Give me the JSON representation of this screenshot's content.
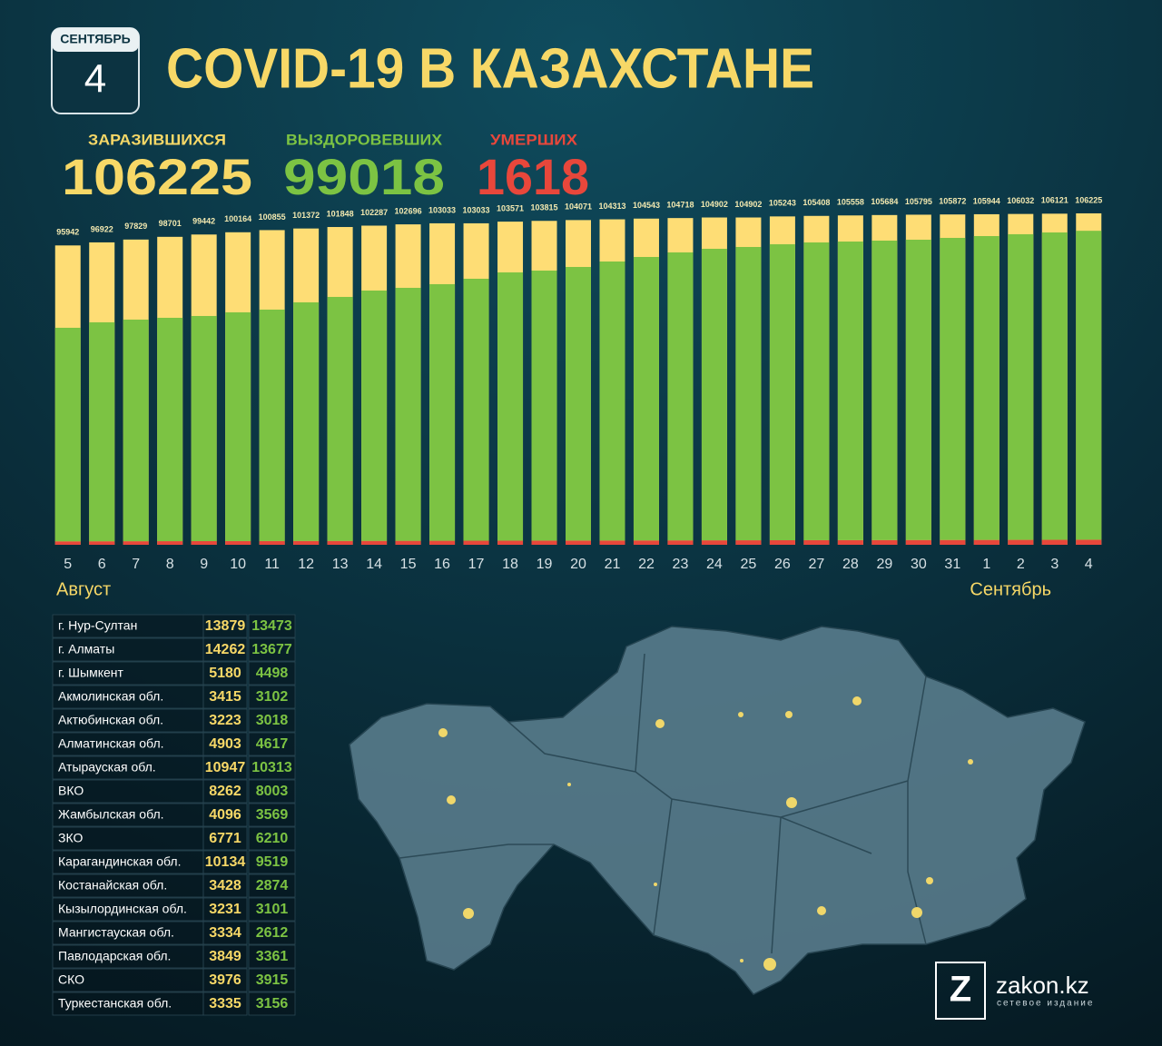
{
  "header": {
    "month": "СЕНТЯБРЬ",
    "day": "4",
    "title": "COVID-19 В КАЗАХСТАНЕ",
    "stats": [
      {
        "label": "ЗАРАЗИВШИХСЯ",
        "value": 106225
      },
      {
        "label": "ВЫЗДОРОВЕВШИХ",
        "value": 99018
      },
      {
        "label": "УМЕРШИХ",
        "value": 1618
      }
    ]
  },
  "chart_data": {
    "type": "bar",
    "categories": [
      "5",
      "6",
      "7",
      "8",
      "9",
      "10",
      "11",
      "12",
      "13",
      "14",
      "15",
      "16",
      "17",
      "18",
      "19",
      "20",
      "21",
      "22",
      "23",
      "24",
      "25",
      "26",
      "27",
      "28",
      "29",
      "30",
      "31",
      "1",
      "2",
      "3",
      "4"
    ],
    "totals": [
      95942,
      96922,
      97829,
      98701,
      99442,
      100164,
      100855,
      101372,
      101848,
      102287,
      102696,
      103033,
      103033,
      103571,
      103815,
      104071,
      104313,
      104543,
      104718,
      104902,
      104902,
      105243,
      105408,
      105558,
      105684,
      105795,
      105872,
      105944,
      106032,
      106121,
      106225
    ],
    "totals_color": "#fedd75",
    "series": [
      {
        "color": "#e8473b",
        "values": [
          1100,
          1117,
          1134,
          1151,
          1168,
          1185,
          1202,
          1219,
          1236,
          1253,
          1270,
          1287,
          1304,
          1321,
          1338,
          1355,
          1372,
          1389,
          1406,
          1423,
          1440,
          1457,
          1474,
          1491,
          1508,
          1525,
          1542,
          1559,
          1576,
          1593,
          1618
        ]
      },
      {
        "color": "#7cc343",
        "values": [
          68450,
          70180,
          71030,
          71600,
          72160,
          73310,
          74170,
          76480,
          78210,
          80230,
          81080,
          82230,
          83960,
          85980,
          86540,
          87690,
          89420,
          90860,
          92300,
          93440,
          94010,
          94860,
          95430,
          95700,
          95980,
          96250,
          96820,
          97380,
          97950,
          98510,
          99018
        ]
      }
    ],
    "ylim": [
      0,
      110000
    ],
    "annotations": [
      "Август",
      "Сентябрь"
    ]
  },
  "table": {
    "rows": [
      [
        "г. Нур-Султан",
        13879,
        13473
      ],
      [
        "г. Алматы",
        14262,
        13677
      ],
      [
        "г. Шымкент",
        5180,
        4498
      ],
      [
        "Акмолинская обл.",
        3415,
        3102
      ],
      [
        "Актюбинская обл.",
        3223,
        3018
      ],
      [
        "Алматинская обл.",
        4903,
        4617
      ],
      [
        "Атырауская обл.",
        10947,
        10313
      ],
      [
        "ВКО",
        8262,
        8003
      ],
      [
        "Жамбылская обл.",
        4096,
        3569
      ],
      [
        "ЗКО",
        6771,
        6210
      ],
      [
        "Карагандинская обл.",
        10134,
        9519
      ],
      [
        "Костанайская обл.",
        3428,
        2874
      ],
      [
        "Кызылординская обл.",
        3231,
        3101
      ],
      [
        "Мангистауская обл.",
        3334,
        2612
      ],
      [
        "Павлодарская обл.",
        3849,
        3361
      ],
      [
        "СКО",
        3976,
        3915
      ],
      [
        "Туркестанская обл.",
        3335,
        3156
      ]
    ]
  },
  "footer": {
    "logo": "Z",
    "brand": "zakon.kz",
    "tagline": "сетевое издание"
  }
}
